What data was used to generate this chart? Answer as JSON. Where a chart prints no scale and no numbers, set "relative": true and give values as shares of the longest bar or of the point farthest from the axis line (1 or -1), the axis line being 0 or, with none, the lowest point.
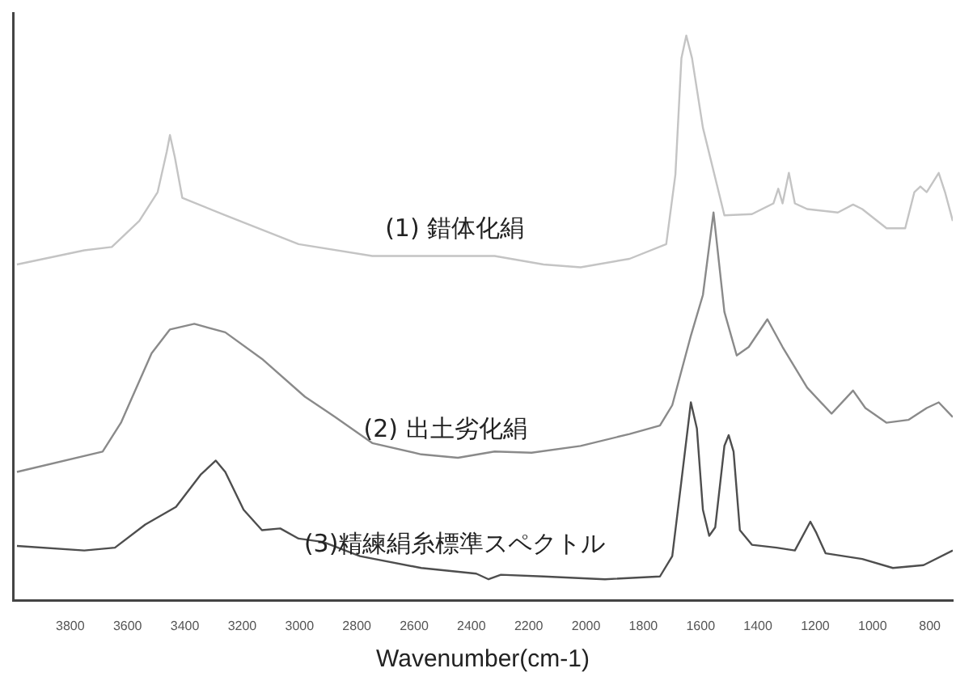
{
  "chart_data": {
    "type": "line",
    "xlabel": "Wavenumber(cm-1)",
    "relative": true,
    "grid": false,
    "legend": false,
    "marker": "none",
    "line_style": "solid",
    "xlim": [
      4000,
      720
    ],
    "xticks": [
      3800,
      3600,
      3400,
      3200,
      3000,
      2800,
      2600,
      2400,
      2200,
      2000,
      1800,
      1600,
      1400,
      1200,
      1000,
      800
    ],
    "series": [
      {
        "name": "(1) 錯体化絹",
        "color": "#c4c4c4",
        "x": [
          3986,
          3751,
          3655,
          3559,
          3495,
          3463,
          3452,
          3435,
          3409,
          3259,
          3003,
          2746,
          2319,
          2148,
          2019,
          1848,
          1720,
          1688,
          1667,
          1650,
          1630,
          1592,
          1517,
          1421,
          1346,
          1329,
          1314,
          1292,
          1271,
          1228,
          1121,
          1068,
          1036,
          951,
          886,
          854,
          833,
          811,
          769,
          747,
          720
        ],
        "values": [
          0.595,
          0.62,
          0.626,
          0.672,
          0.723,
          0.795,
          0.824,
          0.785,
          0.713,
          0.682,
          0.631,
          0.61,
          0.61,
          0.595,
          0.59,
          0.605,
          0.631,
          0.754,
          0.96,
          1,
          0.96,
          0.837,
          0.682,
          0.684,
          0.703,
          0.729,
          0.703,
          0.757,
          0.703,
          0.693,
          0.687,
          0.701,
          0.693,
          0.659,
          0.659,
          0.723,
          0.733,
          0.723,
          0.757,
          0.723,
          0.672
        ]
      },
      {
        "name": "(2) 出土劣化絹",
        "color": "#8a8a8a",
        "x": [
          3986,
          3687,
          3623,
          3516,
          3452,
          3367,
          3259,
          3131,
          2981,
          2875,
          2746,
          2575,
          2447,
          2319,
          2190,
          2019,
          1848,
          1742,
          1699,
          1634,
          1592,
          1555,
          1517,
          1474,
          1432,
          1367,
          1314,
          1228,
          1143,
          1068,
          1025,
          951,
          875,
          811,
          769,
          720
        ],
        "values": [
          0.228,
          0.264,
          0.315,
          0.438,
          0.48,
          0.49,
          0.475,
          0.428,
          0.361,
          0.325,
          0.279,
          0.259,
          0.253,
          0.264,
          0.262,
          0.274,
          0.295,
          0.31,
          0.346,
          0.469,
          0.541,
          0.687,
          0.511,
          0.434,
          0.449,
          0.498,
          0.449,
          0.377,
          0.331,
          0.372,
          0.341,
          0.315,
          0.32,
          0.341,
          0.351,
          0.325
        ]
      },
      {
        "name": "(3)精練絹糸標準スペクトル",
        "color": "#4e4e4e",
        "x": [
          3986,
          3751,
          3644,
          3538,
          3431,
          3345,
          3292,
          3259,
          3195,
          3131,
          3067,
          3003,
          2917,
          2789,
          2575,
          2383,
          2340,
          2297,
          2148,
          1934,
          1742,
          1699,
          1667,
          1634,
          1613,
          1592,
          1570,
          1549,
          1517,
          1502,
          1485,
          1463,
          1421,
          1335,
          1271,
          1217,
          1196,
          1164,
          1036,
          929,
          822,
          720
        ],
        "values": [
          0.097,
          0.089,
          0.094,
          0.135,
          0.166,
          0.223,
          0.248,
          0.228,
          0.161,
          0.125,
          0.128,
          0.11,
          0.104,
          0.079,
          0.058,
          0.048,
          0.038,
          0.046,
          0.043,
          0.038,
          0.043,
          0.079,
          0.212,
          0.351,
          0.305,
          0.161,
          0.115,
          0.13,
          0.274,
          0.293,
          0.264,
          0.125,
          0.099,
          0.094,
          0.089,
          0.14,
          0.12,
          0.084,
          0.074,
          0.058,
          0.063,
          0.089
        ]
      }
    ]
  }
}
